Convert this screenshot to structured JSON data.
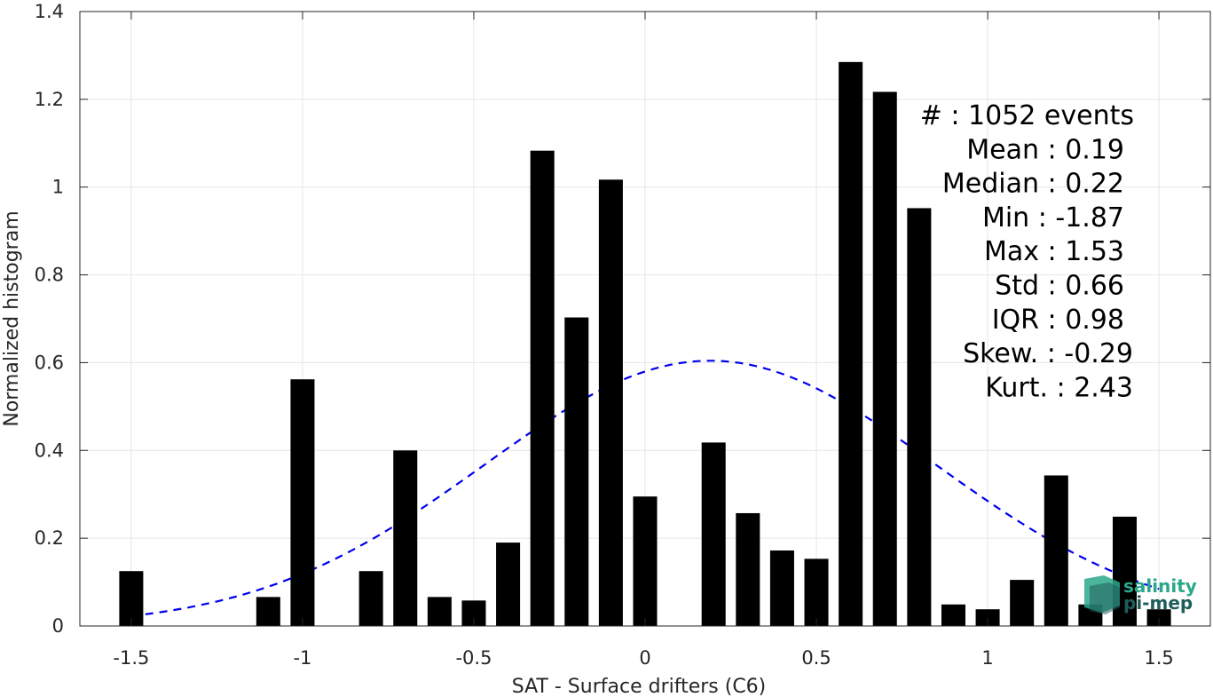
{
  "chart_data": {
    "type": "bar",
    "xlabel": "SAT - Surface drifters (C6)",
    "ylabel": "Normalized histogram",
    "xlim": [
      -1.65,
      1.65
    ],
    "ylim": [
      0,
      1.4
    ],
    "xticks": [
      -1.5,
      -1,
      -0.5,
      0,
      0.5,
      1,
      1.5
    ],
    "xtick_labels": [
      "-1.5",
      "-1",
      "-0.5",
      "0",
      "0.5",
      "1",
      "1.5"
    ],
    "yticks": [
      0,
      0.2,
      0.4,
      0.6,
      0.8,
      1,
      1.2,
      1.4
    ],
    "ytick_labels": [
      "0",
      "0.2",
      "0.4",
      "0.6",
      "0.8",
      "1",
      "1.2",
      "1.4"
    ],
    "grid": true,
    "bar_width": 0.07,
    "bar_color": "#000000",
    "bars": [
      {
        "x": -1.5,
        "y": 0.125
      },
      {
        "x": -1.1,
        "y": 0.066
      },
      {
        "x": -1.0,
        "y": 0.562
      },
      {
        "x": -0.8,
        "y": 0.125
      },
      {
        "x": -0.7,
        "y": 0.4
      },
      {
        "x": -0.6,
        "y": 0.066
      },
      {
        "x": -0.5,
        "y": 0.058
      },
      {
        "x": -0.4,
        "y": 0.19
      },
      {
        "x": -0.3,
        "y": 1.083
      },
      {
        "x": -0.2,
        "y": 0.703
      },
      {
        "x": -0.1,
        "y": 1.017
      },
      {
        "x": 0.0,
        "y": 0.295
      },
      {
        "x": 0.2,
        "y": 0.418
      },
      {
        "x": 0.3,
        "y": 0.257
      },
      {
        "x": 0.4,
        "y": 0.172
      },
      {
        "x": 0.5,
        "y": 0.153
      },
      {
        "x": 0.6,
        "y": 1.285
      },
      {
        "x": 0.7,
        "y": 1.217
      },
      {
        "x": 0.8,
        "y": 0.952
      },
      {
        "x": 0.9,
        "y": 0.049
      },
      {
        "x": 1.0,
        "y": 0.038
      },
      {
        "x": 1.1,
        "y": 0.105
      },
      {
        "x": 1.2,
        "y": 0.343
      },
      {
        "x": 1.3,
        "y": 0.049
      },
      {
        "x": 1.4,
        "y": 0.249
      },
      {
        "x": 1.5,
        "y": 0.038
      }
    ],
    "fit_curve": {
      "style": "dashed",
      "color": "#0000ee",
      "mean": 0.19,
      "std": 0.66,
      "x_range": [
        -1.5,
        1.5
      ]
    },
    "stats": [
      "#  : 1052 events",
      "Mean : 0.19",
      "Median : 0.22",
      "Min : -1.87",
      "Max : 1.53",
      "Std : 0.66",
      "IQR : 0.98",
      "Skew. : -0.29",
      "Kurt. : 2.43"
    ]
  },
  "logo": {
    "line1": "salinity",
    "line2": "pi-mep",
    "color1": "#2aa88a",
    "color2": "#1f5d5a"
  }
}
